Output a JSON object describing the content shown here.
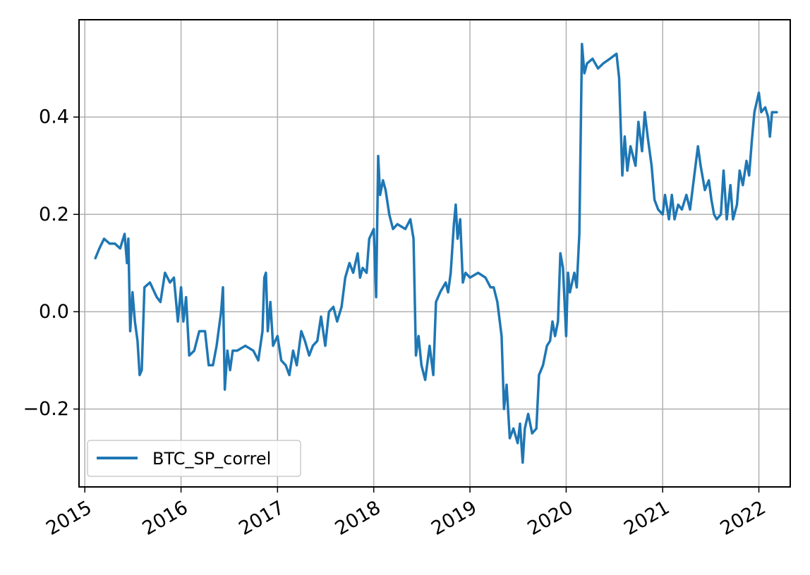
{
  "chart_data": {
    "type": "line",
    "title": "",
    "xlabel": "",
    "ylabel": "",
    "grid": true,
    "legend": {
      "location": "lower-left",
      "entries": [
        "BTC_SP_correl"
      ]
    },
    "x_axis": {
      "type": "date",
      "range": [
        "2014-12-10",
        "2022-04-30"
      ],
      "ticks": [
        {
          "value": "2015-01-01",
          "label": "2015"
        },
        {
          "value": "2016-01-01",
          "label": "2016"
        },
        {
          "value": "2017-01-01",
          "label": "2017"
        },
        {
          "value": "2018-01-01",
          "label": "2018"
        },
        {
          "value": "2019-01-01",
          "label": "2019"
        },
        {
          "value": "2020-01-01",
          "label": "2020"
        },
        {
          "value": "2021-01-01",
          "label": "2021"
        },
        {
          "value": "2022-01-01",
          "label": "2022"
        }
      ],
      "tick_rotation_deg": 30
    },
    "y_axis": {
      "range": [
        -0.36,
        0.6
      ],
      "ticks": [
        {
          "value": -0.2,
          "label": "−0.2"
        },
        {
          "value": 0.0,
          "label": "0.0"
        },
        {
          "value": 0.2,
          "label": "0.2"
        },
        {
          "value": 0.4,
          "label": "0.4"
        }
      ]
    },
    "series": [
      {
        "name": "BTC_SP_correl",
        "color": "#1f77b4",
        "points": [
          [
            "2015-02-10",
            0.11
          ],
          [
            "2015-02-25",
            0.13
          ],
          [
            "2015-03-15",
            0.15
          ],
          [
            "2015-04-05",
            0.14
          ],
          [
            "2015-04-25",
            0.14
          ],
          [
            "2015-05-15",
            0.13
          ],
          [
            "2015-06-01",
            0.16
          ],
          [
            "2015-06-10",
            0.1
          ],
          [
            "2015-06-15",
            0.15
          ],
          [
            "2015-06-22",
            -0.04
          ],
          [
            "2015-07-01",
            0.04
          ],
          [
            "2015-07-10",
            -0.02
          ],
          [
            "2015-07-20",
            -0.06
          ],
          [
            "2015-07-28",
            -0.13
          ],
          [
            "2015-08-05",
            -0.12
          ],
          [
            "2015-08-15",
            0.05
          ],
          [
            "2015-09-05",
            0.06
          ],
          [
            "2015-10-01",
            0.03
          ],
          [
            "2015-10-15",
            0.02
          ],
          [
            "2015-11-01",
            0.08
          ],
          [
            "2015-11-20",
            0.06
          ],
          [
            "2015-12-05",
            0.07
          ],
          [
            "2015-12-20",
            -0.02
          ],
          [
            "2016-01-01",
            0.05
          ],
          [
            "2016-01-10",
            -0.02
          ],
          [
            "2016-01-20",
            0.03
          ],
          [
            "2016-02-01",
            -0.09
          ],
          [
            "2016-02-20",
            -0.08
          ],
          [
            "2016-03-10",
            -0.04
          ],
          [
            "2016-04-01",
            -0.04
          ],
          [
            "2016-04-15",
            -0.11
          ],
          [
            "2016-05-01",
            -0.11
          ],
          [
            "2016-05-15",
            -0.07
          ],
          [
            "2016-06-01",
            0.0
          ],
          [
            "2016-06-08",
            0.05
          ],
          [
            "2016-06-15",
            -0.16
          ],
          [
            "2016-06-25",
            -0.08
          ],
          [
            "2016-07-05",
            -0.12
          ],
          [
            "2016-07-15",
            -0.08
          ],
          [
            "2016-08-01",
            -0.08
          ],
          [
            "2016-09-01",
            -0.07
          ],
          [
            "2016-10-01",
            -0.08
          ],
          [
            "2016-10-20",
            -0.1
          ],
          [
            "2016-11-05",
            -0.04
          ],
          [
            "2016-11-12",
            0.07
          ],
          [
            "2016-11-18",
            0.08
          ],
          [
            "2016-11-25",
            -0.04
          ],
          [
            "2016-12-05",
            0.02
          ],
          [
            "2016-12-15",
            -0.07
          ],
          [
            "2017-01-01",
            -0.05
          ],
          [
            "2017-01-15",
            -0.1
          ],
          [
            "2017-02-01",
            -0.11
          ],
          [
            "2017-02-15",
            -0.13
          ],
          [
            "2017-03-01",
            -0.08
          ],
          [
            "2017-03-15",
            -0.11
          ],
          [
            "2017-04-01",
            -0.04
          ],
          [
            "2017-04-15",
            -0.06
          ],
          [
            "2017-05-01",
            -0.09
          ],
          [
            "2017-05-15",
            -0.07
          ],
          [
            "2017-06-01",
            -0.06
          ],
          [
            "2017-06-15",
            -0.01
          ],
          [
            "2017-07-01",
            -0.07
          ],
          [
            "2017-07-15",
            0.0
          ],
          [
            "2017-08-01",
            0.01
          ],
          [
            "2017-08-15",
            -0.02
          ],
          [
            "2017-09-01",
            0.01
          ],
          [
            "2017-09-15",
            0.07
          ],
          [
            "2017-10-01",
            0.1
          ],
          [
            "2017-10-15",
            0.08
          ],
          [
            "2017-11-01",
            0.12
          ],
          [
            "2017-11-10",
            0.07
          ],
          [
            "2017-11-20",
            0.09
          ],
          [
            "2017-12-05",
            0.08
          ],
          [
            "2017-12-15",
            0.15
          ],
          [
            "2018-01-01",
            0.17
          ],
          [
            "2018-01-10",
            0.03
          ],
          [
            "2018-01-18",
            0.32
          ],
          [
            "2018-01-25",
            0.24
          ],
          [
            "2018-02-05",
            0.27
          ],
          [
            "2018-02-15",
            0.25
          ],
          [
            "2018-03-01",
            0.2
          ],
          [
            "2018-03-15",
            0.17
          ],
          [
            "2018-04-01",
            0.18
          ],
          [
            "2018-05-01",
            0.17
          ],
          [
            "2018-05-20",
            0.19
          ],
          [
            "2018-06-01",
            0.15
          ],
          [
            "2018-06-10",
            -0.09
          ],
          [
            "2018-06-20",
            -0.05
          ],
          [
            "2018-07-01",
            -0.11
          ],
          [
            "2018-07-15",
            -0.14
          ],
          [
            "2018-08-01",
            -0.07
          ],
          [
            "2018-08-15",
            -0.13
          ],
          [
            "2018-08-25",
            0.02
          ],
          [
            "2018-09-10",
            0.04
          ],
          [
            "2018-10-01",
            0.06
          ],
          [
            "2018-10-10",
            0.04
          ],
          [
            "2018-10-20",
            0.08
          ],
          [
            "2018-11-01",
            0.18
          ],
          [
            "2018-11-08",
            0.22
          ],
          [
            "2018-11-15",
            0.15
          ],
          [
            "2018-11-25",
            0.19
          ],
          [
            "2018-12-05",
            0.06
          ],
          [
            "2018-12-15",
            0.08
          ],
          [
            "2019-01-01",
            0.07
          ],
          [
            "2019-02-01",
            0.08
          ],
          [
            "2019-03-01",
            0.07
          ],
          [
            "2019-03-20",
            0.05
          ],
          [
            "2019-04-01",
            0.05
          ],
          [
            "2019-04-15",
            0.02
          ],
          [
            "2019-05-01",
            -0.05
          ],
          [
            "2019-05-10",
            -0.2
          ],
          [
            "2019-05-20",
            -0.15
          ],
          [
            "2019-06-01",
            -0.26
          ],
          [
            "2019-06-15",
            -0.24
          ],
          [
            "2019-07-01",
            -0.27
          ],
          [
            "2019-07-10",
            -0.23
          ],
          [
            "2019-07-20",
            -0.31
          ],
          [
            "2019-07-28",
            -0.24
          ],
          [
            "2019-08-10",
            -0.21
          ],
          [
            "2019-08-25",
            -0.25
          ],
          [
            "2019-09-10",
            -0.24
          ],
          [
            "2019-09-20",
            -0.13
          ],
          [
            "2019-10-05",
            -0.11
          ],
          [
            "2019-10-20",
            -0.07
          ],
          [
            "2019-11-01",
            -0.06
          ],
          [
            "2019-11-10",
            -0.02
          ],
          [
            "2019-11-20",
            -0.05
          ],
          [
            "2019-12-01",
            -0.02
          ],
          [
            "2019-12-10",
            0.12
          ],
          [
            "2019-12-20",
            0.09
          ],
          [
            "2020-01-01",
            -0.05
          ],
          [
            "2020-01-08",
            0.08
          ],
          [
            "2020-01-15",
            0.04
          ],
          [
            "2020-02-01",
            0.08
          ],
          [
            "2020-02-10",
            0.05
          ],
          [
            "2020-02-20",
            0.16
          ],
          [
            "2020-03-01",
            0.55
          ],
          [
            "2020-03-10",
            0.49
          ],
          [
            "2020-03-20",
            0.51
          ],
          [
            "2020-04-10",
            0.52
          ],
          [
            "2020-05-01",
            0.5
          ],
          [
            "2020-05-20",
            0.51
          ],
          [
            "2020-06-15",
            0.52
          ],
          [
            "2020-07-10",
            0.53
          ],
          [
            "2020-07-20",
            0.48
          ],
          [
            "2020-08-01",
            0.28
          ],
          [
            "2020-08-10",
            0.36
          ],
          [
            "2020-08-20",
            0.29
          ],
          [
            "2020-09-01",
            0.34
          ],
          [
            "2020-09-20",
            0.3
          ],
          [
            "2020-10-01",
            0.39
          ],
          [
            "2020-10-15",
            0.33
          ],
          [
            "2020-10-25",
            0.41
          ],
          [
            "2020-11-05",
            0.36
          ],
          [
            "2020-11-20",
            0.3
          ],
          [
            "2020-12-01",
            0.23
          ],
          [
            "2020-12-15",
            0.21
          ],
          [
            "2021-01-01",
            0.2
          ],
          [
            "2021-01-10",
            0.24
          ],
          [
            "2021-01-25",
            0.19
          ],
          [
            "2021-02-05",
            0.24
          ],
          [
            "2021-02-15",
            0.19
          ],
          [
            "2021-03-01",
            0.22
          ],
          [
            "2021-03-15",
            0.21
          ],
          [
            "2021-04-01",
            0.24
          ],
          [
            "2021-04-15",
            0.21
          ],
          [
            "2021-05-01",
            0.28
          ],
          [
            "2021-05-15",
            0.34
          ],
          [
            "2021-05-25",
            0.3
          ],
          [
            "2021-06-10",
            0.25
          ],
          [
            "2021-06-25",
            0.27
          ],
          [
            "2021-07-05",
            0.23
          ],
          [
            "2021-07-15",
            0.2
          ],
          [
            "2021-07-25",
            0.19
          ],
          [
            "2021-08-10",
            0.2
          ],
          [
            "2021-08-20",
            0.29
          ],
          [
            "2021-09-01",
            0.19
          ],
          [
            "2021-09-15",
            0.26
          ],
          [
            "2021-09-25",
            0.19
          ],
          [
            "2021-10-10",
            0.22
          ],
          [
            "2021-10-20",
            0.29
          ],
          [
            "2021-11-01",
            0.26
          ],
          [
            "2021-11-15",
            0.31
          ],
          [
            "2021-11-25",
            0.28
          ],
          [
            "2021-12-05",
            0.35
          ],
          [
            "2021-12-15",
            0.41
          ],
          [
            "2022-01-01",
            0.45
          ],
          [
            "2022-01-10",
            0.41
          ],
          [
            "2022-01-25",
            0.42
          ],
          [
            "2022-02-05",
            0.4
          ],
          [
            "2022-02-12",
            0.36
          ],
          [
            "2022-02-20",
            0.41
          ],
          [
            "2022-03-10",
            0.41
          ]
        ]
      }
    ]
  }
}
